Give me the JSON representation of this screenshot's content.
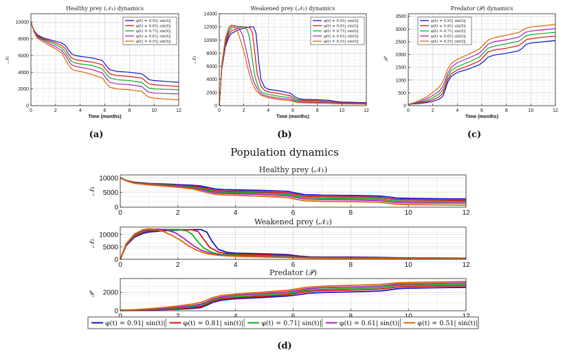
{
  "figure_title": "Population dynamics",
  "captions": [
    "(a)",
    "(b)",
    "(c)",
    "(d)"
  ],
  "colors": {
    "s091": "#1111cc",
    "s081": "#dd1111",
    "s071": "#11aa22",
    "s061": "#aa22bb",
    "s051": "#dd6600"
  },
  "chart_data": [
    {
      "type": "line",
      "title": "Healthy prey (𝒩₁) dynamics",
      "xlabel": "Time (months)",
      "ylabel": "𝒩₁",
      "xlim": [
        0,
        12
      ],
      "ylim": [
        0,
        11000
      ],
      "xticks": [
        "0",
        "2",
        "4",
        "6",
        "8",
        "10",
        "12"
      ],
      "yticks": [
        "0",
        "2000",
        "4000",
        "6000",
        "8000",
        "10000"
      ],
      "grid": true,
      "legend_position": "top-right",
      "x": [
        0,
        0.25,
        0.5,
        1,
        1.5,
        2,
        2.5,
        2.8,
        3.1,
        3.3,
        3.6,
        4,
        5,
        5.8,
        6.1,
        6.4,
        7,
        8,
        9,
        9.3,
        9.6,
        10,
        11,
        12
      ],
      "series": [
        {
          "name": "φ(t) = 0.91| sin(t)|",
          "key": "s091",
          "values": [
            10000,
            9000,
            8500,
            8100,
            7900,
            7700,
            7500,
            7200,
            6600,
            6200,
            6000,
            5900,
            5700,
            5400,
            4800,
            4300,
            4100,
            4000,
            3800,
            3500,
            3100,
            3000,
            2900,
            2800
          ]
        },
        {
          "name": "φ(t) = 0.81| sin(t)|",
          "key": "s081",
          "values": [
            10000,
            8950,
            8400,
            8000,
            7750,
            7500,
            7200,
            6800,
            6100,
            5700,
            5500,
            5400,
            5200,
            4900,
            4300,
            3800,
            3600,
            3500,
            3300,
            2950,
            2600,
            2500,
            2400,
            2300
          ]
        },
        {
          "name": "φ(t) = 0.71| sin(t)|",
          "key": "s071",
          "values": [
            10000,
            8900,
            8300,
            7900,
            7600,
            7300,
            6900,
            6400,
            5700,
            5300,
            5100,
            5000,
            4800,
            4400,
            3800,
            3300,
            3100,
            3000,
            2800,
            2400,
            2100,
            2000,
            1950,
            1900
          ]
        },
        {
          "name": "φ(t) = 0.61| sin(t)|",
          "key": "s061",
          "values": [
            10000,
            8850,
            8200,
            7800,
            7400,
            7050,
            6600,
            6000,
            5300,
            4900,
            4700,
            4600,
            4300,
            3900,
            3300,
            2800,
            2600,
            2500,
            2300,
            1900,
            1600,
            1500,
            1450,
            1400
          ]
        },
        {
          "name": "φ(t) = 0.51| sin(t)|",
          "key": "s051",
          "values": [
            10000,
            8800,
            8100,
            7600,
            7200,
            6800,
            6300,
            5500,
            4800,
            4400,
            4200,
            4100,
            3700,
            3300,
            2700,
            2200,
            2000,
            1900,
            1700,
            1300,
            1000,
            900,
            800,
            700
          ]
        }
      ]
    },
    {
      "type": "line",
      "title": "Weakened prey (𝒩₂) dynamics",
      "xlabel": "Time (months)",
      "ylabel": "𝒩₂",
      "xlim": [
        0,
        12
      ],
      "ylim": [
        0,
        14000
      ],
      "xticks": [
        "0",
        "2",
        "4",
        "6",
        "8",
        "10",
        "12"
      ],
      "yticks": [
        "0",
        "2000",
        "4000",
        "6000",
        "8000",
        "10000",
        "12000",
        "14000"
      ],
      "grid": true,
      "legend_position": "top-right",
      "series": [
        {
          "name": "φ(t) = 0.91| sin(t)|",
          "key": "s091",
          "x": [
            0,
            0.2,
            0.5,
            0.8,
            1,
            1.5,
            2,
            2.5,
            2.8,
            3.0,
            3.2,
            3.4,
            3.7,
            4,
            5,
            5.8,
            6.2,
            6.6,
            7,
            8,
            9,
            9.5,
            10,
            11,
            12
          ],
          "values": [
            0,
            5500,
            9000,
            10500,
            11000,
            11500,
            11800,
            12000,
            12000,
            11000,
            7000,
            4000,
            2800,
            2500,
            2200,
            1900,
            1300,
            1000,
            950,
            900,
            800,
            650,
            550,
            500,
            450
          ]
        },
        {
          "name": "φ(t) = 0.81| sin(t)|",
          "key": "s081",
          "x": [
            0,
            0.2,
            0.5,
            0.8,
            1,
            1.5,
            2,
            2.5,
            2.7,
            2.9,
            3.1,
            3.4,
            3.7,
            4,
            5,
            5.8,
            6.2,
            6.6,
            7,
            8,
            9,
            9.5,
            10,
            11,
            12
          ],
          "values": [
            0,
            5700,
            9300,
            10900,
            11400,
            11800,
            12000,
            11900,
            11200,
            8000,
            4800,
            3000,
            2300,
            2100,
            1800,
            1500,
            1000,
            850,
            800,
            750,
            650,
            550,
            450,
            400,
            380
          ]
        },
        {
          "name": "φ(t) = 0.71| sin(t)|",
          "key": "s071",
          "x": [
            0,
            0.2,
            0.5,
            0.8,
            1,
            1.5,
            2,
            2.3,
            2.5,
            2.7,
            2.9,
            3.2,
            3.5,
            4,
            5,
            5.8,
            6.2,
            6.6,
            7,
            8,
            9,
            9.5,
            10,
            11,
            12
          ],
          "values": [
            0,
            5900,
            9600,
            11300,
            11800,
            12100,
            12000,
            11500,
            10000,
            7000,
            4500,
            2700,
            2000,
            1700,
            1400,
            1200,
            800,
            700,
            650,
            600,
            500,
            420,
            370,
            330,
            300
          ]
        },
        {
          "name": "φ(t) = 0.61| sin(t)|",
          "key": "s061",
          "x": [
            0,
            0.2,
            0.5,
            0.8,
            1,
            1.3,
            1.6,
            1.9,
            2.2,
            2.5,
            2.8,
            3.2,
            3.5,
            4,
            5,
            5.8,
            6.2,
            6.6,
            7,
            8,
            9,
            9.5,
            10,
            11,
            12
          ],
          "values": [
            0,
            6100,
            9900,
            11700,
            12100,
            12200,
            11800,
            10800,
            8500,
            5800,
            3700,
            2200,
            1700,
            1400,
            1100,
            950,
            650,
            550,
            520,
            480,
            420,
            360,
            320,
            290,
            260
          ]
        },
        {
          "name": "φ(t) = 0.51| sin(t)|",
          "key": "s051",
          "x": [
            0,
            0.2,
            0.5,
            0.8,
            1,
            1.2,
            1.5,
            1.8,
            2.1,
            2.4,
            2.7,
            3.0,
            3.4,
            4,
            5,
            5.8,
            6.2,
            6.6,
            7,
            8,
            9,
            9.5,
            10,
            11,
            12
          ],
          "values": [
            0,
            6300,
            10300,
            12000,
            12300,
            12100,
            11200,
            9600,
            7600,
            5200,
            3400,
            2300,
            1600,
            1200,
            900,
            750,
            550,
            450,
            420,
            380,
            340,
            300,
            270,
            240,
            220
          ]
        }
      ]
    },
    {
      "type": "line",
      "title": "Predator (𝒫) dynamics",
      "xlabel": "Time (months)",
      "ylabel": "𝒫",
      "xlim": [
        0,
        12
      ],
      "ylim": [
        0,
        3600
      ],
      "xticks": [
        "0",
        "2",
        "4",
        "6",
        "8",
        "10",
        "12"
      ],
      "yticks": [
        "0",
        "500",
        "1000",
        "1500",
        "2000",
        "2500",
        "3000",
        "3500"
      ],
      "grid": true,
      "legend_position": "top-left",
      "x": [
        0,
        0.5,
        1,
        1.5,
        2,
        2.5,
        2.8,
        3.0,
        3.2,
        3.5,
        4,
        5,
        5.8,
        6.2,
        6.5,
        7,
        8,
        9,
        9.3,
        9.6,
        10,
        11,
        12
      ],
      "series": [
        {
          "name": "φ(t) = 0.91| sin(t)|",
          "key": "s091",
          "values": [
            50,
            70,
            90,
            120,
            170,
            250,
            350,
            600,
            900,
            1150,
            1300,
            1450,
            1600,
            1750,
            1900,
            1980,
            2050,
            2150,
            2250,
            2400,
            2450,
            2500,
            2550
          ]
        },
        {
          "name": "φ(t) = 0.81| sin(t)|",
          "key": "s081",
          "values": [
            50,
            80,
            110,
            160,
            230,
            340,
            470,
            700,
            1000,
            1250,
            1400,
            1580,
            1750,
            1950,
            2100,
            2180,
            2250,
            2350,
            2450,
            2580,
            2620,
            2680,
            2720
          ]
        },
        {
          "name": "φ(t) = 0.71| sin(t)|",
          "key": "s071",
          "values": [
            50,
            90,
            140,
            210,
            310,
            450,
            600,
            820,
            1120,
            1380,
            1530,
            1720,
            1900,
            2100,
            2250,
            2330,
            2420,
            2520,
            2620,
            2740,
            2780,
            2830,
            2870
          ]
        },
        {
          "name": "φ(t) = 0.61| sin(t)|",
          "key": "s061",
          "values": [
            50,
            100,
            170,
            270,
            400,
            560,
            740,
            960,
            1250,
            1500,
            1680,
            1880,
            2050,
            2250,
            2400,
            2500,
            2580,
            2680,
            2780,
            2880,
            2920,
            2970,
            3020
          ]
        },
        {
          "name": "φ(t) = 0.51| sin(t)|",
          "key": "s051",
          "values": [
            50,
            120,
            220,
            350,
            520,
            720,
            920,
            1150,
            1420,
            1650,
            1820,
            2030,
            2220,
            2420,
            2560,
            2660,
            2760,
            2860,
            2950,
            3030,
            3080,
            3130,
            3180
          ]
        }
      ]
    },
    {
      "type": "line",
      "title": "Healthy prey (𝒩₁)",
      "ylabel": "𝒩₁",
      "xlim": [
        0,
        12
      ],
      "ylim": [
        0,
        11000
      ],
      "xticks": [
        "0",
        "2",
        "4",
        "6",
        "8",
        "10",
        "12"
      ],
      "yticks": [
        "0",
        "5000",
        "10000"
      ],
      "grid": true,
      "link": 0
    },
    {
      "type": "line",
      "title": "Weakened prey (𝒩₂)",
      "ylabel": "𝒩₂",
      "xlim": [
        0,
        12
      ],
      "ylim": [
        0,
        13000
      ],
      "xticks": [
        "0",
        "2",
        "4",
        "6",
        "8",
        "10",
        "12"
      ],
      "yticks": [
        "0",
        "5000",
        "10000"
      ],
      "grid": true,
      "link": 1
    },
    {
      "type": "line",
      "title": "Predator (𝒫)",
      "ylabel": "𝒫",
      "xlim": [
        0,
        12
      ],
      "ylim": [
        0,
        3500
      ],
      "xticks": [
        "0",
        "2",
        "4",
        "6",
        "8",
        "10",
        "12"
      ],
      "yticks": [
        "0",
        "2000"
      ],
      "grid": true,
      "legend_position": "bottom",
      "legend": [
        "φ(t) = 0.91| sin(t)|",
        "φ(t) = 0.81| sin(t)|",
        "φ(t) = 0.71| sin(t)|",
        "φ(t) = 0.61| sin(t)|",
        "φ(t) = 0.51| sin(t)|"
      ],
      "link": 2
    }
  ]
}
